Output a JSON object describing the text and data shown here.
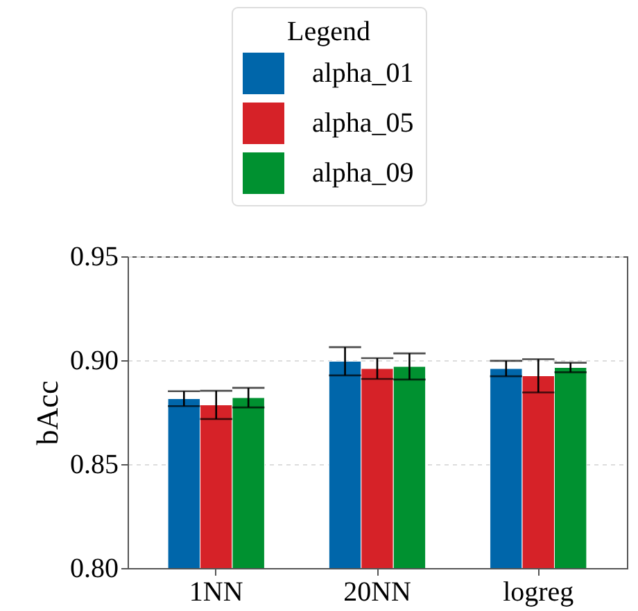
{
  "chart_data": {
    "type": "bar",
    "ylabel": "bAcc",
    "legend_title": "Legend",
    "legend": "top",
    "categories": [
      "1NN",
      "20NN",
      "logreg"
    ],
    "series": [
      {
        "name": "alpha_01",
        "color": "#0066aa",
        "values": [
          0.8815,
          0.8995,
          0.896
        ],
        "errors": [
          0.0036,
          0.0068,
          0.0037
        ]
      },
      {
        "name": "alpha_05",
        "color": "#d62228",
        "values": [
          0.8785,
          0.896,
          0.8925
        ],
        "errors": [
          0.0068,
          0.005,
          0.008
        ]
      },
      {
        "name": "alpha_09",
        "color": "#009130",
        "values": [
          0.882,
          0.897,
          0.8965
        ],
        "errors": [
          0.0047,
          0.0063,
          0.0023
        ]
      }
    ],
    "ylim": [
      0.8,
      0.95
    ],
    "yticks": [
      {
        "value": 0.8,
        "label": "0.80"
      },
      {
        "value": 0.85,
        "label": "0.85"
      },
      {
        "value": 0.9,
        "label": "0.90"
      },
      {
        "value": 0.95,
        "label": "0.95"
      }
    ],
    "grid": "y"
  }
}
